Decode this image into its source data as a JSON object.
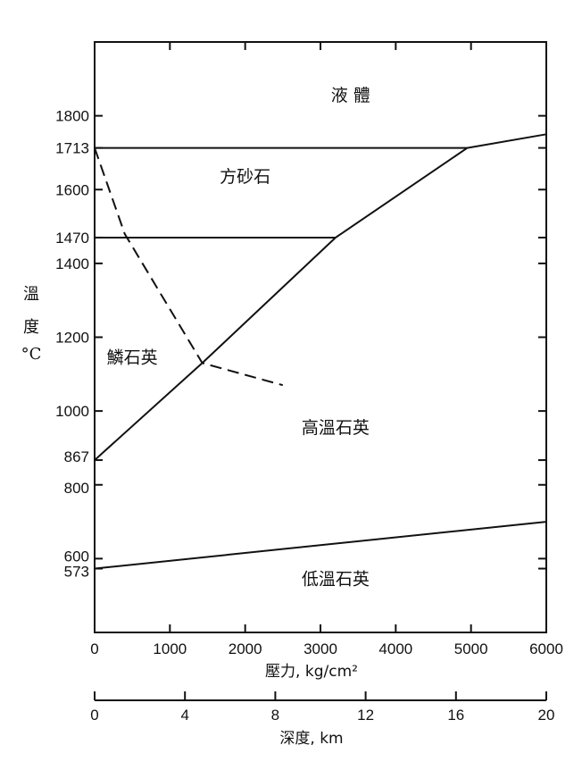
{
  "chart_data": {
    "type": "line",
    "xlabel": "壓力, kg/cm²",
    "ylabel_chars": [
      "溫",
      "度",
      "°C"
    ],
    "x_ticks": [
      0,
      1000,
      2000,
      3000,
      4000,
      5000,
      6000
    ],
    "y_ticks": [
      573,
      600,
      800,
      867,
      1000,
      1200,
      1400,
      1470,
      1600,
      1713,
      1800
    ],
    "y_tick_labels": [
      "573",
      "600",
      "800",
      "867",
      "1000",
      "1200",
      "1400",
      "1470",
      "1600",
      "1713",
      "1800"
    ],
    "xlim": [
      0,
      6000
    ],
    "ylim": [
      400,
      2000
    ],
    "secondary_axis": {
      "label": "深度, km",
      "ticks": [
        0,
        4,
        8,
        12,
        16,
        20
      ],
      "tick_labels": [
        "0",
        "4",
        "8",
        "12",
        "16",
        "20"
      ],
      "range": [
        0,
        20
      ]
    },
    "regions": [
      {
        "label": "液 體",
        "x": 3400,
        "y": 1840
      },
      {
        "label": "方砂石",
        "x": 2000,
        "y": 1620
      },
      {
        "label": "鱗石英",
        "x": 500,
        "y": 1130
      },
      {
        "label": "高溫石英",
        "x": 3200,
        "y": 940
      },
      {
        "label": "低溫石英",
        "x": 3200,
        "y": 530
      }
    ],
    "series": [
      {
        "style": "solid",
        "points": [
          [
            0,
            1713
          ],
          [
            4950,
            1713
          ]
        ]
      },
      {
        "style": "solid",
        "points": [
          [
            0,
            1470
          ],
          [
            3200,
            1470
          ]
        ]
      },
      {
        "style": "solid",
        "points": [
          [
            0,
            867
          ],
          [
            1430,
            1130
          ],
          [
            3200,
            1470
          ],
          [
            4950,
            1713
          ],
          [
            6000,
            1750
          ]
        ]
      },
      {
        "style": "solid",
        "points": [
          [
            0,
            573
          ],
          [
            6000,
            700
          ]
        ]
      },
      {
        "style": "dashed",
        "points": [
          [
            0,
            1713
          ],
          [
            400,
            1480
          ],
          [
            1430,
            1130
          ],
          [
            2500,
            1070
          ]
        ]
      }
    ]
  }
}
